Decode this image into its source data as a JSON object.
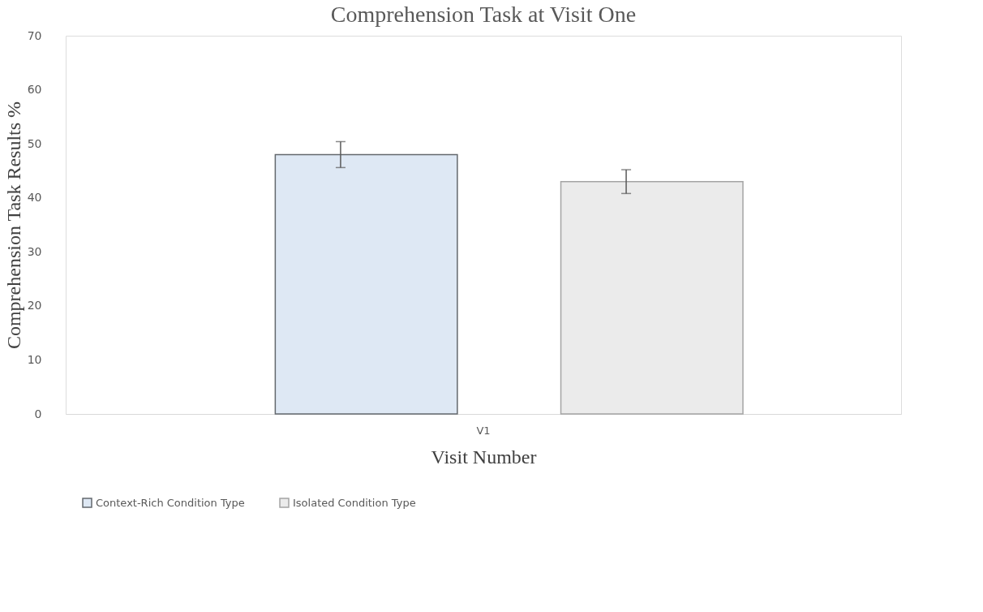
{
  "chart_data": {
    "type": "bar",
    "title": "Comprehension Task at Visit One",
    "xlabel": "Visit Number",
    "ylabel": "Comprehension Task Results %",
    "categories": [
      "V1"
    ],
    "series": [
      {
        "name": "Context-Rich Condition Type",
        "color": "#dee8f4",
        "values": [
          48
        ],
        "errors": [
          2.4
        ]
      },
      {
        "name": "Isolated Condition Type",
        "color": "#ebebeb",
        "values": [
          43
        ],
        "errors": [
          2.2
        ]
      }
    ],
    "ylim": [
      0,
      70
    ],
    "yticks": [
      0,
      10,
      20,
      30,
      40,
      50,
      60,
      70
    ],
    "grid": false,
    "legend": "bottom"
  }
}
